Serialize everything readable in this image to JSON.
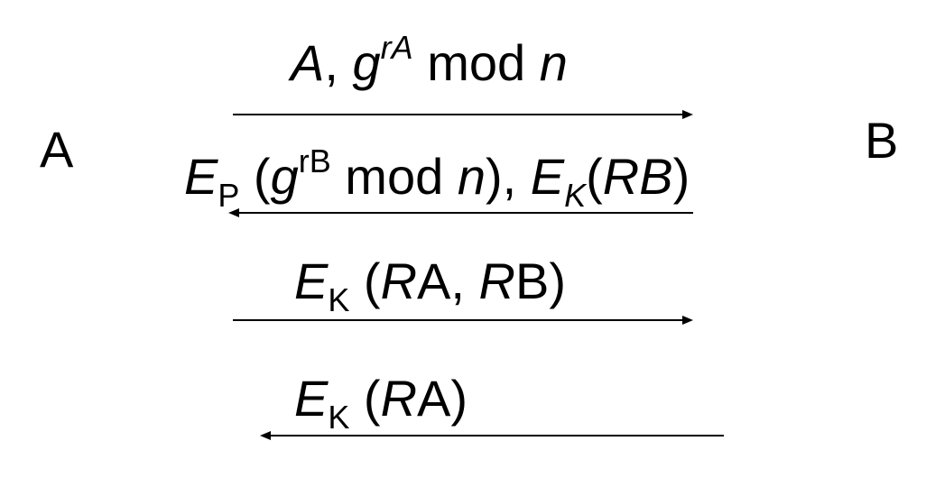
{
  "parties": {
    "left": "A",
    "right": "B"
  },
  "messages": [
    {
      "direction": "A-to-B",
      "parts": {
        "a": "A",
        "comma": ", ",
        "g": "g",
        "exp": "rA",
        "rest": " mod ",
        "n": "n"
      }
    },
    {
      "direction": "B-to-A",
      "parts": {
        "e1": "E",
        "sub1": "P",
        "open1": " (",
        "g": "g",
        "exp": "rB",
        "mod": " mod ",
        "n": "n",
        "close1": "), ",
        "e2": "E",
        "sub2": "K",
        "open2": "(",
        "rb": "RB",
        "close2": ")"
      }
    },
    {
      "direction": "A-to-B",
      "parts": {
        "e": "E",
        "sub": "K",
        "open": " (",
        "r1": "R",
        "a1": "A, ",
        "r2": "R",
        "b2": "B)"
      }
    },
    {
      "direction": "B-to-A",
      "parts": {
        "e": "E",
        "sub": "K",
        "open": " (",
        "r1": "R",
        "a1": "A)"
      }
    }
  ],
  "colors": {
    "text": "#000000",
    "arrow": "#000000",
    "background": "#ffffff"
  }
}
